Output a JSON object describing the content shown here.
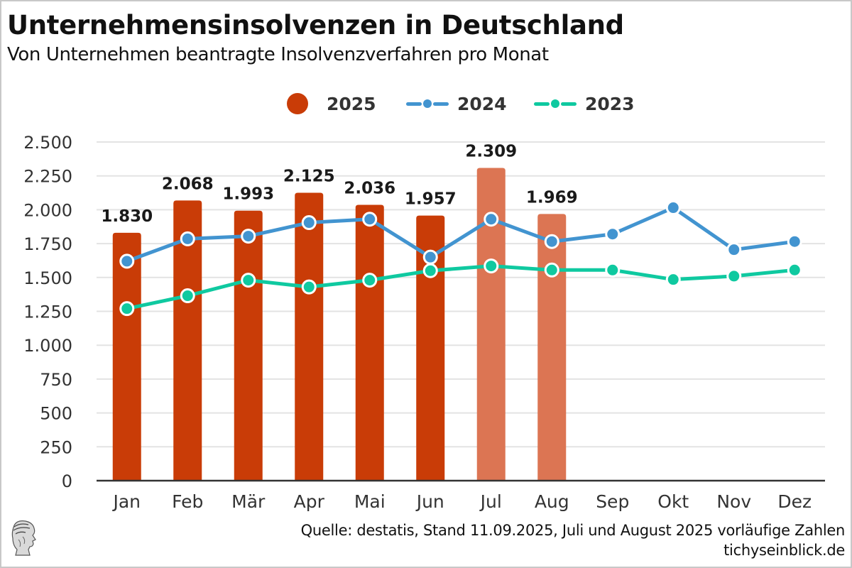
{
  "header": {
    "title": "Unternehmensinsolvenzen in Deutschland",
    "subtitle": "Von Unternehmen beantragte Insolvenzverfahren pro Monat"
  },
  "legend": {
    "items": [
      {
        "label": "2025",
        "marker": "circle",
        "color": "#c93c07"
      },
      {
        "label": "2024",
        "marker": "line-dot",
        "color": "#4294d0"
      },
      {
        "label": "2023",
        "marker": "line-dot",
        "color": "#0fc9a0"
      }
    ]
  },
  "footer": {
    "source": "Quelle: destatis, Stand 11.09.2025, Juli und August 2025 vorläufige Zahlen",
    "site": "tichyseinblick.de",
    "logo_icon": "hermes-head-logo-icon"
  },
  "colors": {
    "bar_final": "#c93c07",
    "bar_preliminary": "#dc7553",
    "line_2024": "#4294d0",
    "line_2023": "#0fc9a0",
    "grid": "#e3e3e3",
    "axis": "#333333"
  },
  "chart_data": {
    "type": "bar",
    "title": "Unternehmensinsolvenzen in Deutschland",
    "subtitle": "Von Unternehmen beantragte Insolvenzverfahren pro Monat",
    "xlabel": "",
    "ylabel": "",
    "categories": [
      "Jan",
      "Feb",
      "Mär",
      "Apr",
      "Mai",
      "Jun",
      "Jul",
      "Aug",
      "Sep",
      "Okt",
      "Nov",
      "Dez"
    ],
    "ylim": [
      0,
      2500
    ],
    "yticks": [
      0,
      250,
      500,
      750,
      1000,
      1250,
      1500,
      1750,
      2000,
      2250,
      2500
    ],
    "ytick_labels": [
      "0",
      "250",
      "500",
      "750",
      "1.000",
      "1.250",
      "1.500",
      "1.750",
      "2.000",
      "2.250",
      "2.500"
    ],
    "grid": true,
    "legend_position": "top-center",
    "series": [
      {
        "name": "2025",
        "type": "bar",
        "values": [
          1830,
          2068,
          1993,
          2125,
          2036,
          1957,
          2309,
          1969,
          null,
          null,
          null,
          null
        ],
        "labels": [
          "1.830",
          "2.068",
          "1.993",
          "2.125",
          "2.036",
          "1.957",
          "2.309",
          "1.969",
          "",
          "",
          "",
          ""
        ],
        "preliminary": [
          false,
          false,
          false,
          false,
          false,
          false,
          true,
          true,
          false,
          false,
          false,
          false
        ]
      },
      {
        "name": "2024",
        "type": "line",
        "values": [
          1620,
          1785,
          1805,
          1905,
          1930,
          1650,
          1930,
          1765,
          1820,
          2015,
          1705,
          1765
        ]
      },
      {
        "name": "2023",
        "type": "line",
        "values": [
          1270,
          1365,
          1480,
          1430,
          1480,
          1550,
          1585,
          1555,
          1555,
          1485,
          1510,
          1555
        ]
      }
    ],
    "annotations": [
      "Juli und August 2025 vorläufige Zahlen"
    ]
  }
}
